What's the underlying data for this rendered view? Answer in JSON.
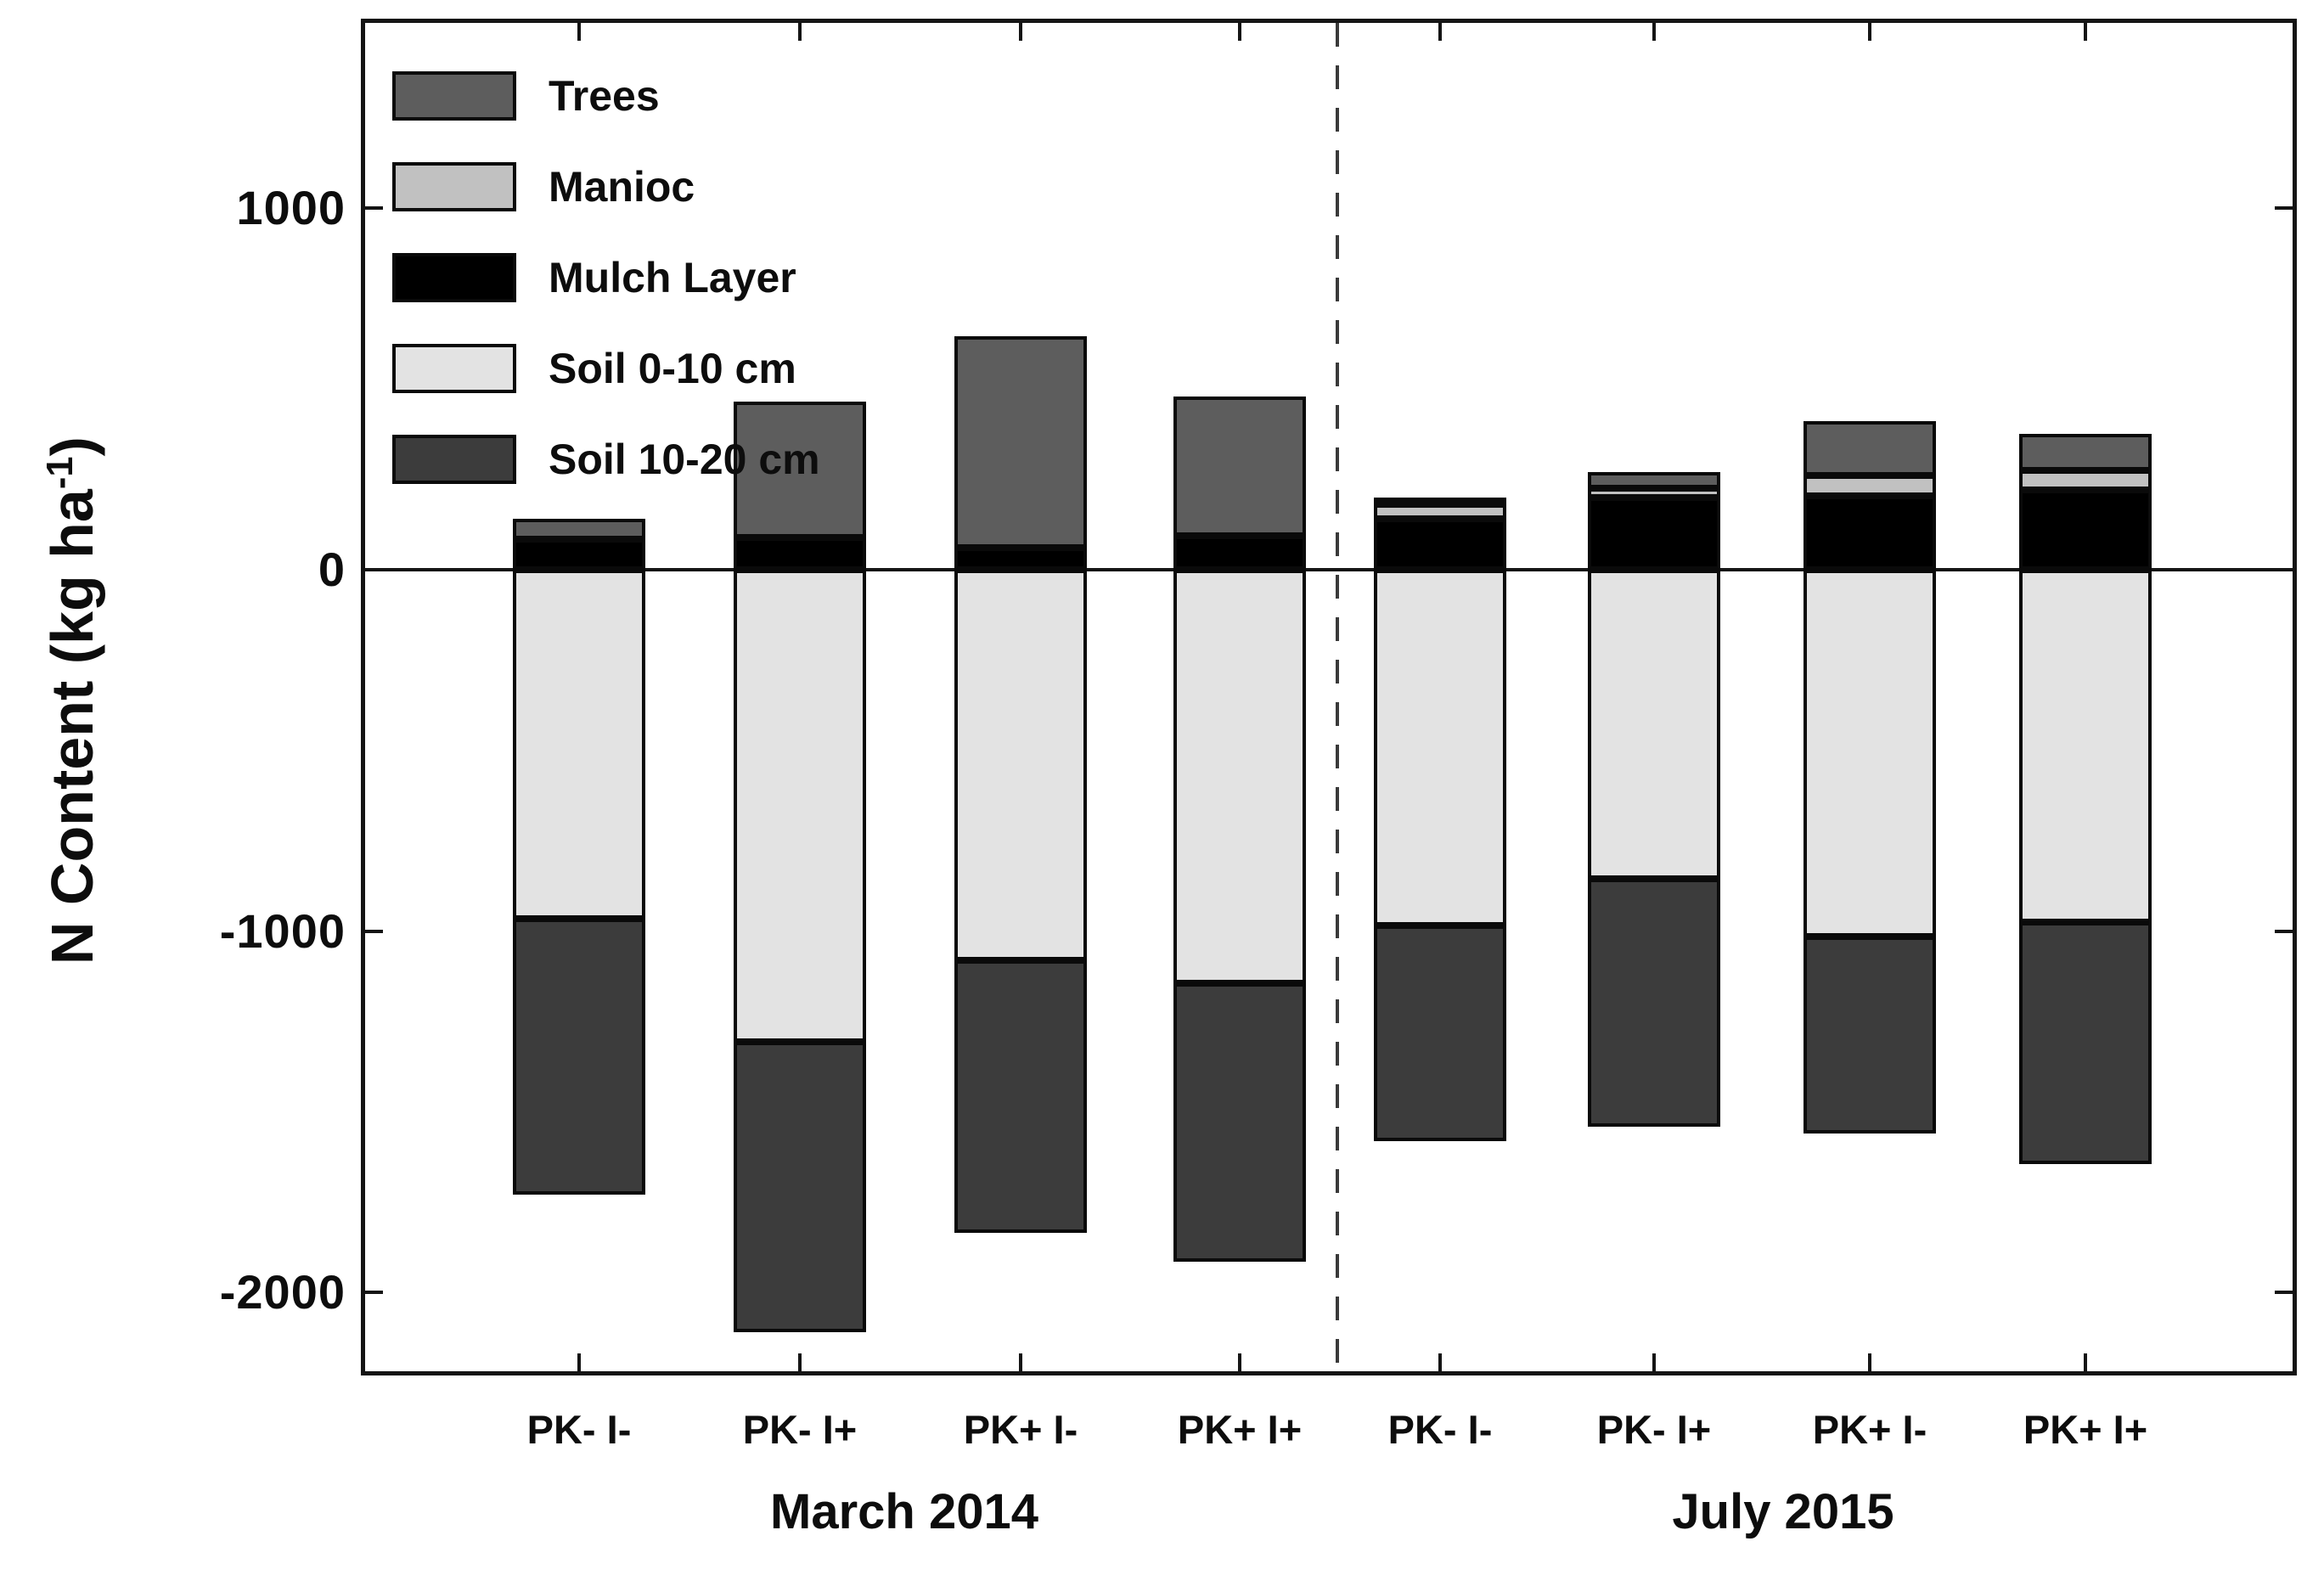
{
  "chart_data": {
    "type": "bar",
    "variant": "diverging-stacked-bar",
    "title": "",
    "ylabel_prefix": "N Content (kg ha",
    "ylabel_sup": "-1",
    "ylabel_suffix": ")",
    "ylim": [
      -2230,
      1520
    ],
    "grid": false,
    "legend_position": "top-left-inside",
    "yticks": [
      {
        "value": 1000,
        "label": "1000"
      },
      {
        "value": 0,
        "label": "0"
      },
      {
        "value": -1000,
        "label": "-1000"
      },
      {
        "value": -2000,
        "label": "-2000"
      }
    ],
    "groups": [
      {
        "label": "March 2014",
        "categories": [
          "PK- I-",
          "PK- I+",
          "PK+ I-",
          "PK+ I+"
        ]
      },
      {
        "label": "July 2015",
        "categories": [
          "PK- I-",
          "PK- I+",
          "PK+ I-",
          "PK+ I+"
        ]
      }
    ],
    "series": [
      {
        "name": "Trees",
        "color": "#5d5d5d",
        "values": [
          55,
          375,
          585,
          385,
          20,
          45,
          150,
          100
        ]
      },
      {
        "name": "Manioc",
        "color": "#c1c1c1",
        "values": [
          0,
          0,
          0,
          0,
          40,
          25,
          55,
          55
        ]
      },
      {
        "name": "Mulch Layer",
        "color": "#000000",
        "values": [
          85,
          90,
          60,
          95,
          140,
          200,
          205,
          220
        ]
      },
      {
        "name": "Soil 0-10 cm",
        "color": "#e3e3e3",
        "values": [
          -965,
          -1305,
          -1080,
          -1145,
          -985,
          -855,
          -1015,
          -975
        ]
      },
      {
        "name": "Soil 10-20 cm",
        "color": "#3c3c3c",
        "values": [
          -765,
          -805,
          -755,
          -770,
          -595,
          -685,
          -545,
          -670
        ]
      }
    ],
    "stack_order_positive_from_zero": [
      "Mulch Layer",
      "Manioc",
      "Trees"
    ],
    "stack_order_negative_from_zero": [
      "Soil 0-10 cm",
      "Soil 10-20 cm"
    ],
    "legend_entries": [
      {
        "label": "Trees",
        "color": "#5d5d5d"
      },
      {
        "label": "Manioc",
        "color": "#c1c1c1"
      },
      {
        "label": "Mulch Layer",
        "color": "#000000"
      },
      {
        "label": "Soil 0-10 cm",
        "color": "#e3e3e3"
      },
      {
        "label": "Soil 10-20 cm",
        "color": "#3c3c3c"
      }
    ],
    "axis_color": "#141414",
    "divider_color": "#3a3a3a"
  }
}
